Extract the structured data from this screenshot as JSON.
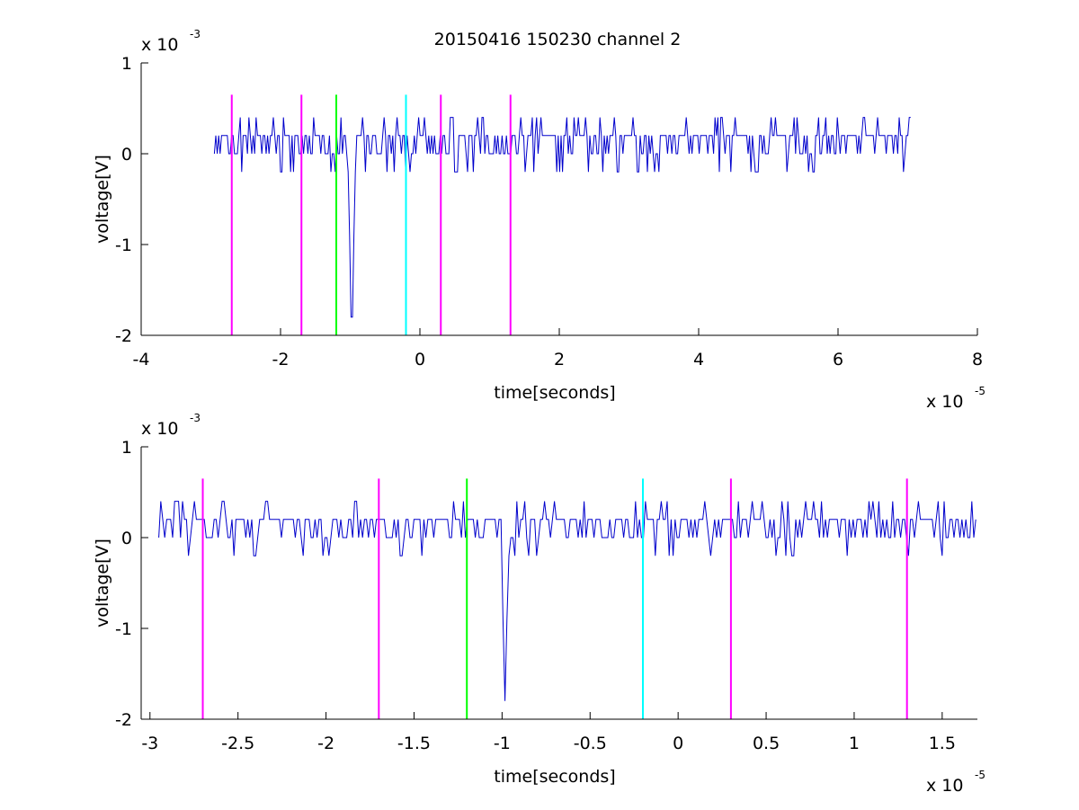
{
  "title": "20150416 150230 channel 2",
  "colors": {
    "signal": "#0000cc",
    "magenta": "#ff00ff",
    "green": "#00ff00",
    "cyan": "#00ffff",
    "axis": "#000000"
  },
  "chart_data": [
    {
      "type": "line",
      "title": "20150416 150230 channel 2",
      "xlabel": "time[seconds]",
      "ylabel": "voltage[V]",
      "x_multiplier_base": "x 10",
      "x_multiplier_exp": "-5",
      "y_multiplier_base": "x 10",
      "y_multiplier_exp": "-3",
      "xlim": [
        -4,
        8
      ],
      "ylim": [
        -2,
        1
      ],
      "xticks": [
        -4,
        -2,
        0,
        2,
        4,
        6,
        8
      ],
      "xtick_labels": [
        "-4",
        "-2",
        "0",
        "2",
        "4",
        "6",
        "8"
      ],
      "yticks": [
        -2,
        -1,
        0,
        1
      ],
      "ytick_labels": [
        "-2",
        "-1",
        "0",
        "1"
      ],
      "signal": {
        "x_start": -2.95,
        "x_end": 7.05,
        "baseline": 0.1,
        "noise_levels": [
          0,
          0.2,
          0.4
        ],
        "spike_x": -0.98,
        "spike_min": -1.8
      },
      "markers": [
        {
          "x": -2.7,
          "color": "magenta"
        },
        {
          "x": -1.7,
          "color": "magenta"
        },
        {
          "x": -1.2,
          "color": "green"
        },
        {
          "x": -0.2,
          "color": "cyan"
        },
        {
          "x": 0.3,
          "color": "magenta"
        },
        {
          "x": 1.3,
          "color": "magenta"
        }
      ],
      "marker_top": 0.65,
      "marker_bottom": -2
    },
    {
      "type": "line",
      "xlabel": "time[seconds]",
      "ylabel": "voltage[V]",
      "x_multiplier_base": "x 10",
      "x_multiplier_exp": "-5",
      "y_multiplier_base": "x 10",
      "y_multiplier_exp": "-3",
      "xlim": [
        -3.05,
        1.7
      ],
      "ylim": [
        -2,
        1
      ],
      "xticks": [
        -3,
        -2.5,
        -2,
        -1.5,
        -1,
        -0.5,
        0,
        0.5,
        1,
        1.5
      ],
      "xtick_labels": [
        "-3",
        "-2.5",
        "-2",
        "-1.5",
        "-1",
        "-0.5",
        "0",
        "0.5",
        "1",
        "1.5"
      ],
      "yticks": [
        -2,
        -1,
        0,
        1
      ],
      "ytick_labels": [
        "-2",
        "-1",
        "0",
        "1"
      ],
      "signal": {
        "x_start": -2.95,
        "x_end": 1.7,
        "baseline": 0.1,
        "noise_levels": [
          0,
          0.2,
          0.4
        ],
        "spike_x": -0.98,
        "spike_min": -1.8
      },
      "markers": [
        {
          "x": -2.7,
          "color": "magenta"
        },
        {
          "x": -1.7,
          "color": "magenta"
        },
        {
          "x": -1.2,
          "color": "green"
        },
        {
          "x": -0.2,
          "color": "cyan"
        },
        {
          "x": 0.3,
          "color": "magenta"
        },
        {
          "x": 1.3,
          "color": "magenta"
        }
      ],
      "marker_top": 0.65,
      "marker_bottom": -2
    }
  ]
}
